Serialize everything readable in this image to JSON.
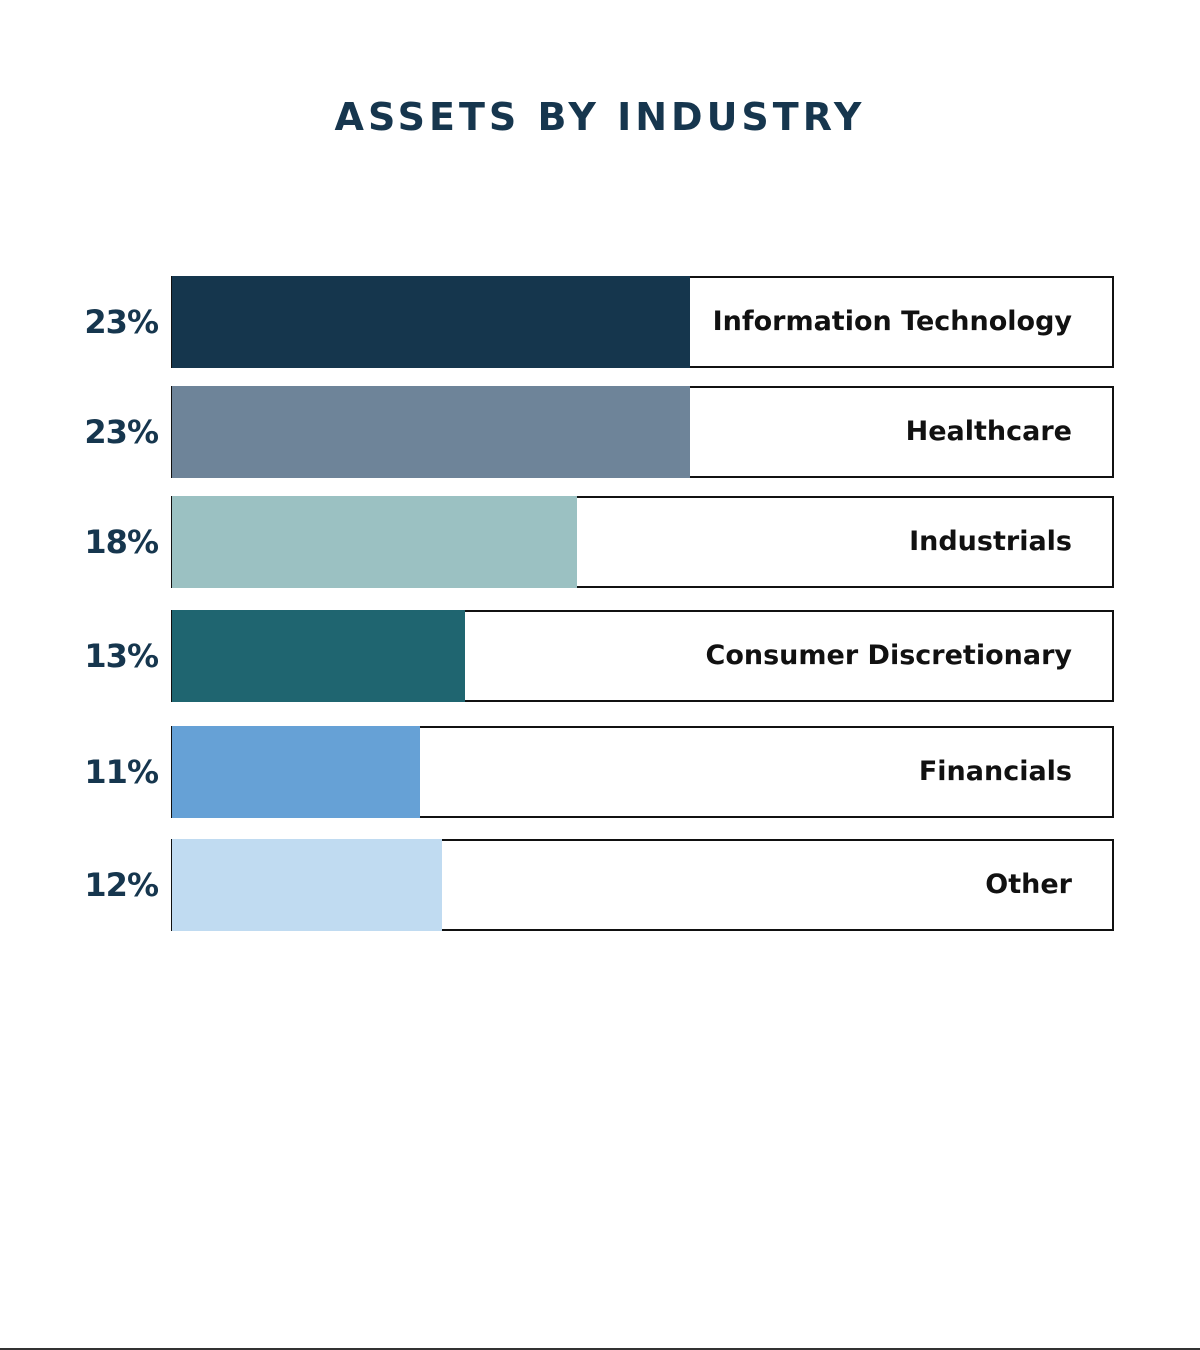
{
  "chart_data": {
    "type": "bar",
    "orientation": "horizontal",
    "title": "ASSETS BY INDUSTRY",
    "categories": [
      "Information Technology",
      "Healthcare",
      "Industrials",
      "Consumer Discretionary",
      "Financials",
      "Other"
    ],
    "values": [
      23,
      23,
      18,
      13,
      11,
      12
    ],
    "value_labels": [
      "23%",
      "23%",
      "18%",
      "13%",
      "11%",
      "12%"
    ],
    "colors": [
      "#15364d",
      "#6e8499",
      "#9bc1c2",
      "#1f6570",
      "#66a1d6",
      "#c0dbf1"
    ],
    "grid": false,
    "legend": "none"
  }
}
